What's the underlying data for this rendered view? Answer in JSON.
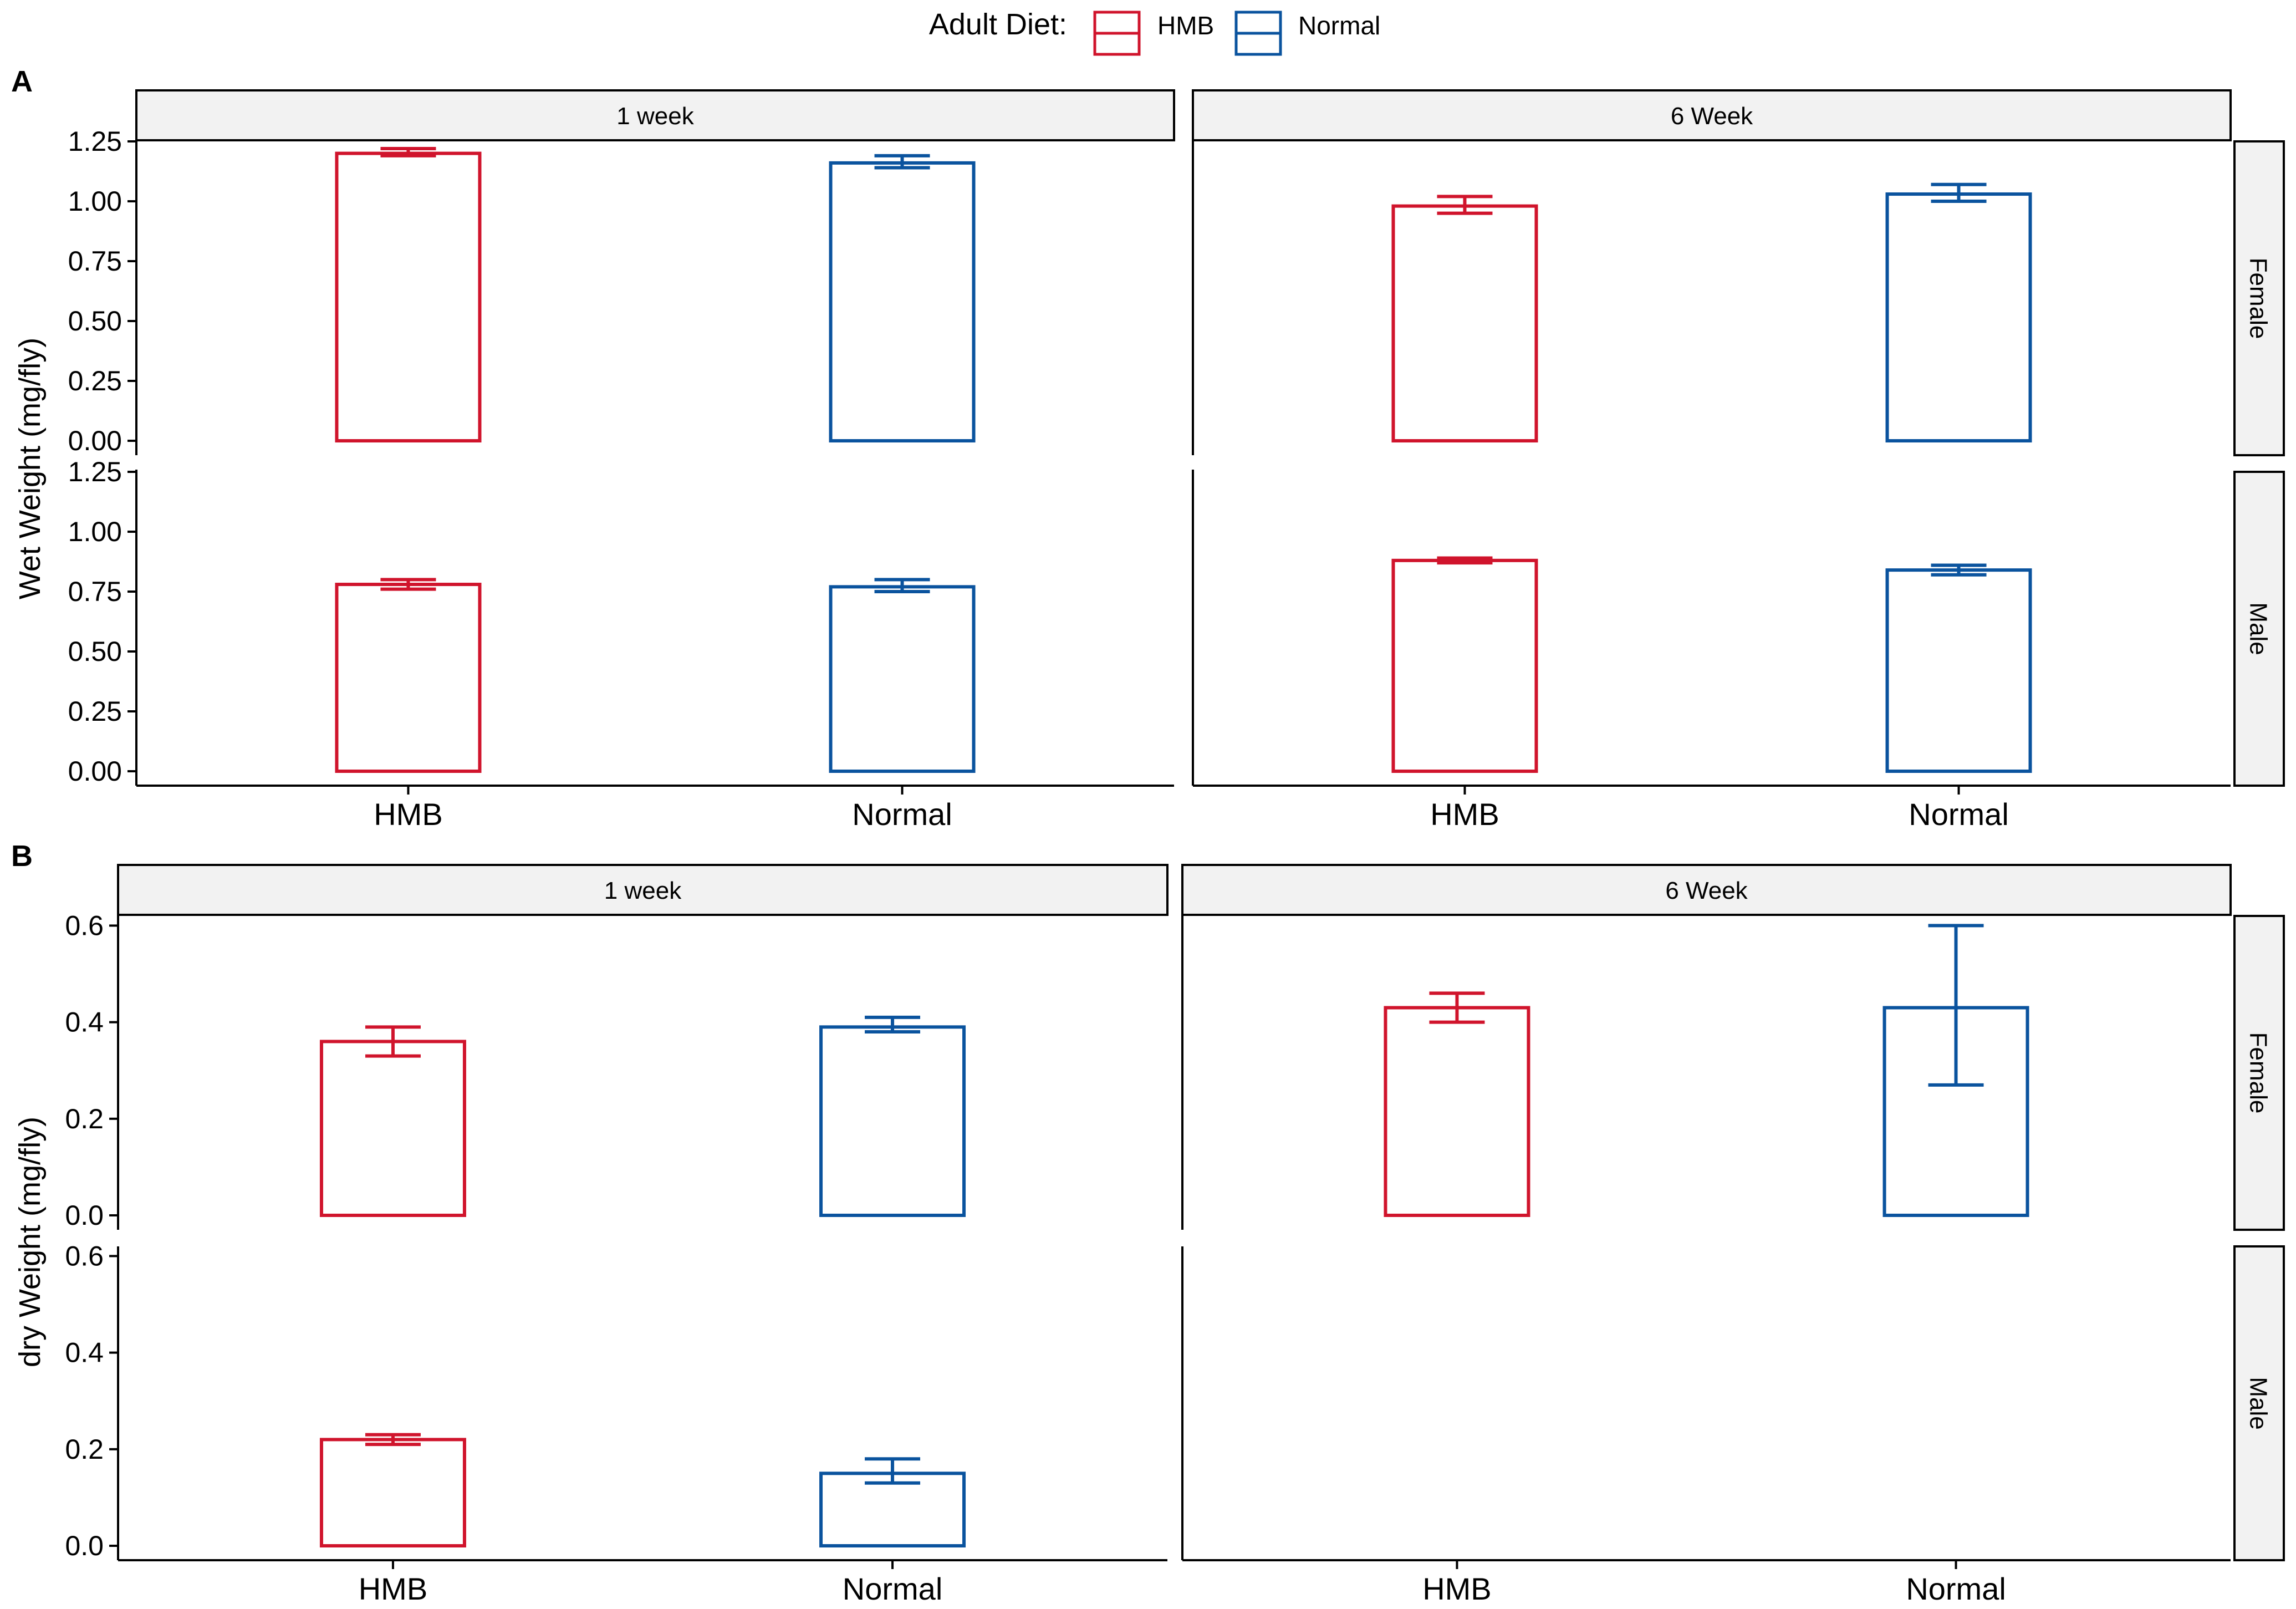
{
  "legend": {
    "title": "Adult Diet:",
    "items": [
      {
        "label": "HMB",
        "color": "#d0142c"
      },
      {
        "label": "Normal",
        "color": "#0a539e"
      }
    ]
  },
  "colors": {
    "HMB": "#d0142c",
    "Normal": "#0a539e",
    "strip_fill": "#f2f2f2",
    "axis": "#000000"
  },
  "chart_data": [
    {
      "panel_label": "A",
      "type": "bar",
      "ylabel": "Wet Weight (mg/fly)",
      "ylim": [
        0,
        1.25
      ],
      "yticks": [
        0,
        0.25,
        0.5,
        0.75,
        1.0,
        1.25
      ],
      "ytick_labels": [
        "0.00",
        "0.25",
        "0.50",
        "0.75",
        "1.00",
        "1.25"
      ],
      "categories": [
        "HMB",
        "Normal"
      ],
      "col_facets": [
        "1 week",
        "6 Week"
      ],
      "row_facets": [
        "Female",
        "Male"
      ],
      "grid": false,
      "cells": [
        {
          "col": "1 week",
          "row": "Female",
          "values": [
            1.2,
            1.16
          ],
          "err_low": [
            1.19,
            1.14
          ],
          "err_high": [
            1.22,
            1.19
          ]
        },
        {
          "col": "6 Week",
          "row": "Female",
          "values": [
            0.98,
            1.03
          ],
          "err_low": [
            0.95,
            1.0
          ],
          "err_high": [
            1.02,
            1.07
          ]
        },
        {
          "col": "1 week",
          "row": "Male",
          "values": [
            0.78,
            0.77
          ],
          "err_low": [
            0.76,
            0.75
          ],
          "err_high": [
            0.8,
            0.8
          ]
        },
        {
          "col": "6 Week",
          "row": "Male",
          "values": [
            0.88,
            0.84
          ],
          "err_low": [
            0.87,
            0.82
          ],
          "err_high": [
            0.89,
            0.86
          ]
        }
      ]
    },
    {
      "panel_label": "B",
      "type": "bar",
      "ylabel": "dry Weight (mg/fly)",
      "ylim": [
        0,
        0.62
      ],
      "yticks": [
        0,
        0.2,
        0.4,
        0.6
      ],
      "ytick_labels": [
        "0.0",
        "0.2",
        "0.4",
        "0.6"
      ],
      "categories": [
        "HMB",
        "Normal"
      ],
      "col_facets": [
        "1 week",
        "6 Week"
      ],
      "row_facets": [
        "Female",
        "Male"
      ],
      "grid": false,
      "cells": [
        {
          "col": "1 week",
          "row": "Female",
          "values": [
            0.36,
            0.39
          ],
          "err_low": [
            0.33,
            0.38
          ],
          "err_high": [
            0.39,
            0.41
          ]
        },
        {
          "col": "6 Week",
          "row": "Female",
          "values": [
            0.43,
            0.43
          ],
          "err_low": [
            0.4,
            0.27
          ],
          "err_high": [
            0.46,
            0.6
          ]
        },
        {
          "col": "1 week",
          "row": "Male",
          "values": [
            0.22,
            0.15
          ],
          "err_low": [
            0.21,
            0.13
          ],
          "err_high": [
            0.23,
            0.18
          ]
        },
        {
          "col": "6 Week",
          "row": "Male",
          "values": [
            0.0,
            0.0
          ],
          "err_low": [
            0.0,
            0.0
          ],
          "err_high": [
            0.0,
            0.0
          ]
        }
      ]
    }
  ]
}
